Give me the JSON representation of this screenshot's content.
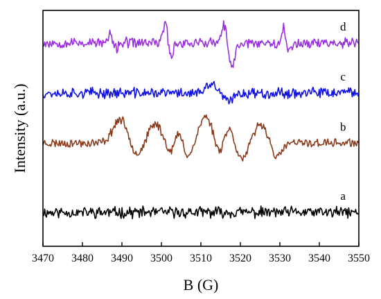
{
  "chart_data": {
    "type": "line",
    "xlabel": "B (G)",
    "ylabel": "Intensity (a.u.)",
    "xlim": [
      3470,
      3550
    ],
    "xticks": [
      3470,
      3480,
      3490,
      3500,
      3510,
      3520,
      3530,
      3540,
      3550
    ],
    "yticks_shown": false,
    "legend": "none (traces labeled a–d at right)",
    "series": [
      {
        "name": "a",
        "color": "#000000",
        "baseline": 0.5,
        "noise": 0.45,
        "seed": 11,
        "features": []
      },
      {
        "name": "b",
        "color": "#8a3a1a",
        "baseline": 5.2,
        "noise": 0.35,
        "seed": 23,
        "features": [
          {
            "center": 3489.5,
            "amp": 1.6,
            "width": 1.8
          },
          {
            "center": 3493.8,
            "amp": -0.8,
            "width": 1.3
          },
          {
            "center": 3498.5,
            "amp": 1.3,
            "width": 1.6
          },
          {
            "center": 3502.5,
            "amp": -0.7,
            "width": 1.2
          },
          {
            "center": 3504.3,
            "amp": 0.9,
            "width": 1.0
          },
          {
            "center": 3506.8,
            "amp": -0.9,
            "width": 1.2
          },
          {
            "center": 3511.3,
            "amp": 1.8,
            "width": 1.7
          },
          {
            "center": 3514.5,
            "amp": -0.8,
            "width": 1.1
          },
          {
            "center": 3517.0,
            "amp": 1.0,
            "width": 1.1
          },
          {
            "center": 3520.5,
            "amp": -1.1,
            "width": 1.2
          },
          {
            "center": 3525.2,
            "amp": 1.3,
            "width": 1.5
          },
          {
            "center": 3529.3,
            "amp": -1.0,
            "width": 1.2
          }
        ]
      },
      {
        "name": "c",
        "color": "#1010e6",
        "baseline": 8.6,
        "noise": 0.42,
        "seed": 37,
        "features": [
          {
            "center": 3512.8,
            "amp": 0.6,
            "width": 1.2
          },
          {
            "center": 3517.0,
            "amp": -0.6,
            "width": 1.2
          }
        ]
      },
      {
        "name": "d",
        "color": "#9a2ee0",
        "baseline": 12.0,
        "noise": 0.42,
        "seed": 53,
        "features": [
          {
            "center": 3487.2,
            "amp": 0.7,
            "width": 0.5
          },
          {
            "center": 3488.2,
            "amp": -0.5,
            "width": 0.6
          },
          {
            "center": 3501.0,
            "amp": 1.4,
            "width": 0.6
          },
          {
            "center": 3502.3,
            "amp": -1.0,
            "width": 0.6
          },
          {
            "center": 3516.0,
            "amp": 1.3,
            "width": 0.6
          },
          {
            "center": 3517.8,
            "amp": -1.7,
            "width": 0.8
          },
          {
            "center": 3531.0,
            "amp": 1.1,
            "width": 0.5
          },
          {
            "center": 3532.3,
            "amp": -0.7,
            "width": 0.6
          }
        ]
      }
    ]
  }
}
